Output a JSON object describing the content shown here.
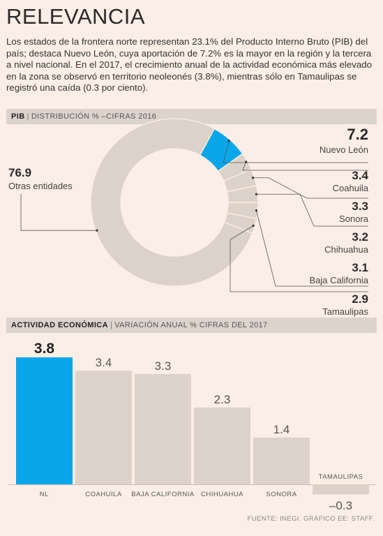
{
  "title": "RELEVANCIA",
  "intro": "Los estados de la frontera norte representan 23.1% del Producto Interno Bruto (PIB) del país; destaca Nuevo León, cuya aportación de 7.2% es la mayor en la región y la tercera a nivel nacional. En el 2017, el crecimiento anual de la actividad económica más elevado en la zona se observó en territorio neoleonés (3.8%), mientras sólo en Tamaulipas se registró una caída (0.3 por ciento).",
  "band1": {
    "bold": "PIB",
    "sep": "|",
    "text": "DISTRIBUCIÓN % –CIFRAS 2016"
  },
  "band2": {
    "bold": "ACTIVIDAD ECONÓMICA",
    "sep": "|",
    "text": "VARIACIÓN ANUAL % CIFRAS DEL 2017"
  },
  "source": "FUENTE: INEGI. GRÁFICO EE: STAFF.",
  "colors": {
    "highlight": "#0aa6ea",
    "base": "#ddd2c9",
    "text": "#3a3a3a",
    "background": "#fbeee6"
  },
  "chart_data": [
    {
      "type": "pie",
      "title": "",
      "slices": [
        {
          "label": "Nuevo León",
          "value": 7.2,
          "display": "7.2",
          "highlight": true
        },
        {
          "label": "Coahuila",
          "value": 3.4,
          "display": "3.4"
        },
        {
          "label": "Sonora",
          "value": 3.3,
          "display": "3.3"
        },
        {
          "label": "Chihuahua",
          "value": 3.2,
          "display": "3.2"
        },
        {
          "label": "Baja California",
          "value": 3.1,
          "display": "3.1"
        },
        {
          "label": "Tamaulipas",
          "value": 2.9,
          "display": "2.9"
        },
        {
          "label": "Otras entidades",
          "value": 76.9,
          "display": "76.9"
        }
      ]
    },
    {
      "type": "bar",
      "title": "",
      "categories": [
        "NL",
        "COAHUILA",
        "BAJA CALIFORNIA",
        "CHIHUAHUA",
        "SONORA",
        "TAMAULIPAS"
      ],
      "values": [
        3.8,
        3.4,
        3.3,
        2.3,
        1.4,
        -0.3
      ],
      "value_labels": [
        "3.8",
        "3.4",
        "3.3",
        "2.3",
        "1.4",
        "–0.3"
      ],
      "highlight_index": 0,
      "ylim": [
        -0.3,
        3.8
      ],
      "grid": false
    }
  ]
}
